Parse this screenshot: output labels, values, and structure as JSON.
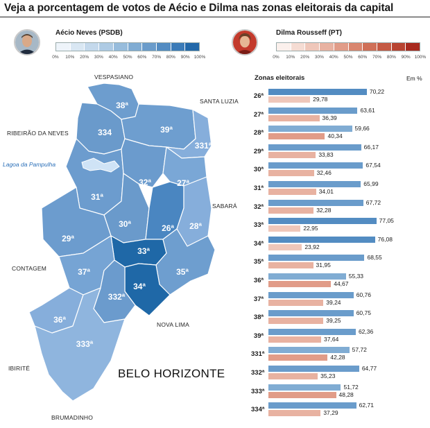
{
  "title": "Veja a porcentagem de votos de Aécio e Dilma nas zonas eleitorais da capital",
  "candidates": {
    "aecio": {
      "name": "Aécio Neves (PSDB)",
      "color": "#1b6ca8"
    },
    "dilma": {
      "name": "Dilma Rousseff (PT)",
      "color": "#c0392b"
    }
  },
  "scale_ticks": [
    "0%",
    "10%",
    "20%",
    "30%",
    "40%",
    "50%",
    "60%",
    "70%",
    "80%",
    "90%",
    "100%"
  ],
  "aecio_scale_colors": [
    "#eef4fa",
    "#d9e7f3",
    "#c4d9ec",
    "#aecbe4",
    "#97bcdc",
    "#80acd3",
    "#6a9ccb",
    "#538cc2",
    "#3b7bb8",
    "#2268a9"
  ],
  "dilma_scale_colors": [
    "#fbf0ec",
    "#f5dcd3",
    "#efc7ba",
    "#e8b2a1",
    "#e19c88",
    "#d9866f",
    "#d07058",
    "#c55a44",
    "#b84330",
    "#a82a1e"
  ],
  "map": {
    "city": "BELO HORIZONTE",
    "lake": "Lagoa da Pampulha",
    "places": {
      "vespasiano": "VESPASIANO",
      "santa_luzia": "SANTA LUZIA",
      "ribeirao": "RIBEIRÃO DA NEVES",
      "sabara": "SABARÁ",
      "contagem": "CONTAGEM",
      "nova_lima": "NOVA LIMA",
      "ibirite": "IBIRITÉ",
      "brumadinho": "BRUMADINHO"
    },
    "zone_labels": {
      "z38": "38ª",
      "z334": "334",
      "z39": "39ª",
      "z331": "331ª",
      "z32": "32ª",
      "z27": "27ª",
      "z31": "31ª",
      "z30": "30ª",
      "z26": "26ª",
      "z28": "28ª",
      "z29": "29ª",
      "z33": "33ª",
      "z37": "37ª",
      "z35": "35ª",
      "z34": "34ª",
      "z332": "332ª",
      "z36": "36ª",
      "z333": "333ª"
    }
  },
  "table": {
    "header": "Zonas eleitorais",
    "unit": "Em %"
  },
  "chart_data": {
    "type": "bar",
    "title": "Veja a porcentagem de votos de Aécio e Dilma nas zonas eleitorais da capital",
    "unit": "Em %",
    "xlim": [
      0,
      100
    ],
    "categories": [
      "26ª",
      "27ª",
      "28ª",
      "29ª",
      "30ª",
      "31ª",
      "32ª",
      "33ª",
      "34ª",
      "35ª",
      "36ª",
      "37ª",
      "38ª",
      "39ª",
      "331ª",
      "332ª",
      "333ª",
      "334ª"
    ],
    "series": [
      {
        "name": "Aécio Neves (PSDB)",
        "values": [
          70.22,
          63.61,
          59.66,
          66.17,
          67.54,
          65.99,
          67.72,
          77.05,
          76.08,
          68.55,
          55.33,
          60.76,
          60.75,
          62.36,
          57.72,
          64.77,
          51.72,
          62.71
        ]
      },
      {
        "name": "Dilma Rousseff (PT)",
        "values": [
          29.78,
          36.39,
          40.34,
          33.83,
          32.46,
          34.01,
          32.28,
          22.95,
          23.92,
          31.95,
          44.67,
          39.24,
          39.25,
          37.64,
          42.28,
          35.23,
          48.28,
          37.29
        ]
      }
    ],
    "labels_aecio": [
      "70,22",
      "63,61",
      "59,66",
      "66,17",
      "67,54",
      "65,99",
      "67,72",
      "77,05",
      "76,08",
      "68,55",
      "55,33",
      "60,76",
      "60,75",
      "62,36",
      "57,72",
      "64,77",
      "51,72",
      "62,71"
    ],
    "labels_dilma": [
      "29,78",
      "36,39",
      "40,34",
      "33,83",
      "32,46",
      "34,01",
      "32,28",
      "22,95",
      "23,92",
      "31,95",
      "44,67",
      "39,24",
      "39,25",
      "37,64",
      "42,28",
      "35,23",
      "48,28",
      "37,29"
    ]
  }
}
